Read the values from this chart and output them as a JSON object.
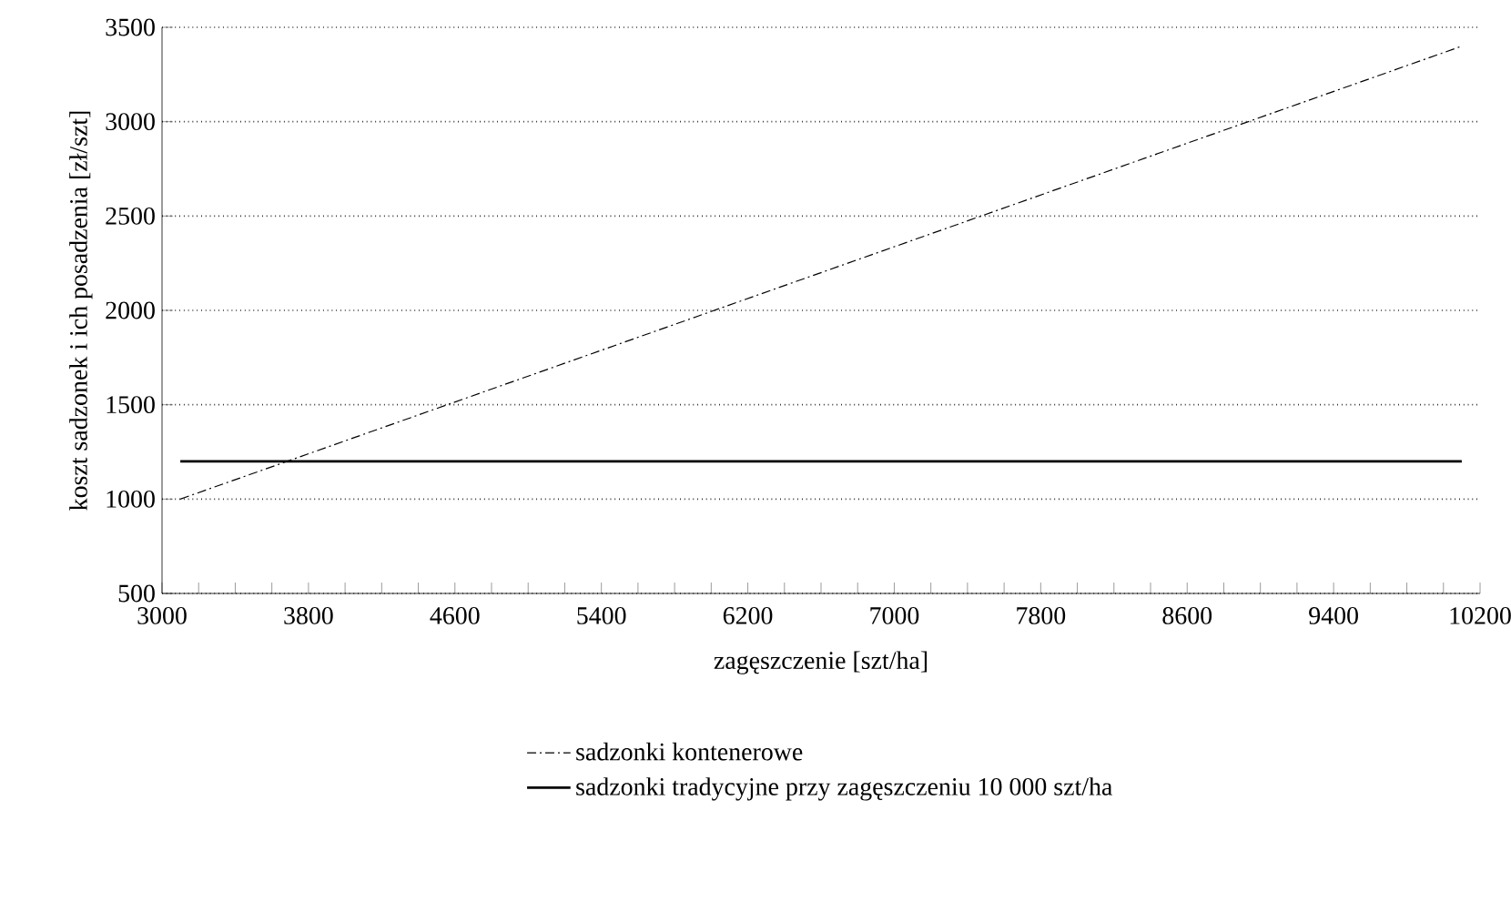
{
  "chart_data": {
    "type": "line",
    "xlabel": "zagęszczenie [szt/ha]",
    "ylabel": "koszt sadzonek i ich posadzenia [zł/szt]",
    "x": [
      3100,
      10100
    ],
    "series": [
      {
        "name": "sadzonki kontenerowe",
        "color": "#000000",
        "values": [
          1000,
          3400
        ],
        "line_style": "dashdot"
      },
      {
        "name": "sadzonki tradycyjne przy zagęszczeniu 10 000 szt/ha",
        "color": "#000000",
        "values": [
          1200,
          1200
        ],
        "line_style": "solid"
      }
    ],
    "xlim": [
      3000,
      10200
    ],
    "xticks": [
      3000,
      3800,
      4600,
      5400,
      6200,
      7000,
      7800,
      8600,
      9400,
      10200
    ],
    "ylim": [
      500,
      3500
    ],
    "yticks": [
      500,
      1000,
      1500,
      2000,
      2500,
      3000,
      3500
    ],
    "grid": "y",
    "legend": "bottom",
    "marker": "none"
  }
}
